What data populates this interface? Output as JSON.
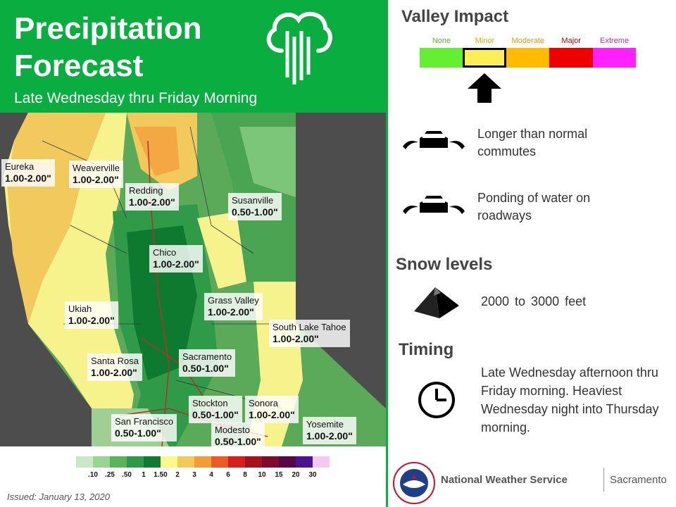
{
  "header": {
    "title": "Precipitation Forecast",
    "subtitle": "Late Wednesday thru Friday Morning"
  },
  "map": {
    "locations": [
      {
        "name": "Eureka",
        "value": "1.00-2.00\""
      },
      {
        "name": "Weaverville",
        "value": "1.00-2.00\""
      },
      {
        "name": "Redding",
        "value": "1.00-2.00\""
      },
      {
        "name": "Susanville",
        "value": "0.50-1.00\""
      },
      {
        "name": "Chico",
        "value": "1.00-2.00\""
      },
      {
        "name": "Grass Valley",
        "value": "1.00-2.00\""
      },
      {
        "name": "Ukiah",
        "value": "1.00-2.00\""
      },
      {
        "name": "South Lake Tahoe",
        "value": "1.00-2.00\""
      },
      {
        "name": "Santa Rosa",
        "value": "1.00-2.00\""
      },
      {
        "name": "Sacramento",
        "value": "0.50-1.00\""
      },
      {
        "name": "Stockton",
        "value": "0.50-1.00\""
      },
      {
        "name": "Sonora",
        "value": "1.00-2.00\""
      },
      {
        "name": "San Francisco",
        "value": "0.50-1.00\""
      },
      {
        "name": "Modesto",
        "value": "0.50-1.00\""
      },
      {
        "name": "Yosemite",
        "value": "1.00-2.00\""
      }
    ]
  },
  "legend": {
    "ticks": [
      ".10",
      ".25",
      ".50",
      "1",
      "1.50",
      "2",
      "3",
      "4",
      "6",
      "8",
      "10",
      "15",
      "20",
      "30"
    ],
    "colors": [
      "#c8e8c6",
      "#98d494",
      "#5ab55a",
      "#2c9a48",
      "#0f7a30",
      "#fbf98a",
      "#f5c85a",
      "#f39c3a",
      "#ec5b27",
      "#d6201f",
      "#a8101e",
      "#7e0b2c",
      "#55074a",
      "#4a1490",
      "#f4c8f2"
    ]
  },
  "issued": "Issued: January 13, 2020",
  "valley_impact": {
    "title": "Valley Impact",
    "categories": [
      {
        "label": "None",
        "color": "#66ee33",
        "label_color": "#55bb22"
      },
      {
        "label": "Minor",
        "color": "#ffee55",
        "label_color": "#d8b000"
      },
      {
        "label": "Moderate",
        "color": "#ffbb00",
        "label_color": "#e89a00"
      },
      {
        "label": "Major",
        "color": "#ee0000",
        "label_color": "#cc0000"
      },
      {
        "label": "Extreme",
        "color": "#ff22ff",
        "label_color": "#cc22cc"
      }
    ],
    "selected": "Minor",
    "impacts": [
      "Longer than normal commutes",
      "Ponding of water on roadways"
    ]
  },
  "snow": {
    "title": "Snow levels",
    "text": "2000 to 3000 feet"
  },
  "timing": {
    "title": "Timing",
    "text": "Late Wednesday afternoon thru Friday morning. Heaviest Wednesday night into Thursday morning."
  },
  "footer": {
    "org": "National Weather Service",
    "office": "Sacramento"
  }
}
